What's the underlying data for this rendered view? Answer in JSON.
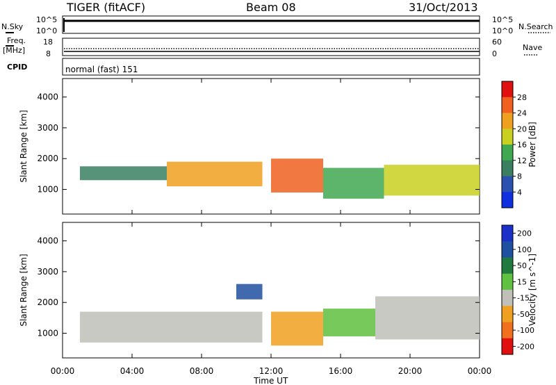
{
  "header": {
    "station": "TIGER (fitACF)",
    "beam": "Beam 08",
    "date": "31/Oct/2013"
  },
  "top_panels": {
    "nsky_label": "N.Sky",
    "nsearch_label": "N.Search",
    "noise_ticks": [
      "10^5",
      "10^0"
    ],
    "freq_label_top": "Freq.",
    "freq_label_unit": "[MHz]",
    "freq_ticks": [
      "18",
      "8"
    ],
    "nave_label": "Nave",
    "nave_ticks": [
      "60",
      "0"
    ],
    "cpid_label": "CPID",
    "cpid_text": "normal (fast) 151"
  },
  "chart_data": [
    {
      "type": "heatmap",
      "title": "",
      "xlabel": "Time UT",
      "ylabel": "Slant Range [km]",
      "x_ticks": [
        "00:00",
        "04:00",
        "08:00",
        "12:00",
        "16:00",
        "20:00",
        "00:00"
      ],
      "y_ticks": [
        "1000",
        "2000",
        "3000",
        "4000"
      ],
      "ylim": [
        200,
        4600
      ],
      "colorbar": {
        "label": "Power [dB]",
        "ticks": [
          "4",
          "8",
          "12",
          "16",
          "20",
          "24",
          "28"
        ],
        "range": [
          0,
          32
        ],
        "colors": [
          "#1030e0",
          "#2b50b0",
          "#3a8060",
          "#40a850",
          "#c8d020",
          "#f0a020",
          "#f06020",
          "#e01010"
        ]
      },
      "bands": [
        {
          "t_start": 1.0,
          "t_end": 6.0,
          "range_start": 1300,
          "range_end": 1750,
          "power": 8
        },
        {
          "t_start": 6.0,
          "t_end": 11.5,
          "range_start": 1100,
          "range_end": 1900,
          "power": 20
        },
        {
          "t_start": 12.0,
          "t_end": 15.0,
          "range_start": 900,
          "range_end": 2000,
          "power": 26
        },
        {
          "t_start": 15.0,
          "t_end": 18.5,
          "range_start": 700,
          "range_end": 1700,
          "power": 12
        },
        {
          "t_start": 18.5,
          "t_end": 24.0,
          "range_start": 800,
          "range_end": 1800,
          "power": 18
        }
      ]
    },
    {
      "type": "heatmap",
      "title": "",
      "xlabel": "Time UT",
      "ylabel": "Slant Range [km]",
      "x_ticks": [
        "00:00",
        "04:00",
        "08:00",
        "12:00",
        "16:00",
        "20:00",
        "00:00"
      ],
      "y_ticks": [
        "1000",
        "2000",
        "3000",
        "4000"
      ],
      "ylim": [
        200,
        4600
      ],
      "colorbar": {
        "label": "Velocity [m s^-1]",
        "ticks": [
          "200",
          "100",
          "50",
          "15",
          "-15",
          "-50",
          "-100",
          "-200"
        ],
        "range": [
          -250,
          250
        ],
        "colors": [
          "#1a30c8",
          "#2050a0",
          "#207a40",
          "#60c040",
          "#c0c0b8",
          "#f0a020",
          "#f07020",
          "#e01010"
        ]
      },
      "bands": [
        {
          "t_start": 1.0,
          "t_end": 11.5,
          "range_start": 700,
          "range_end": 1700,
          "velocity": 0
        },
        {
          "t_start": 10.0,
          "t_end": 11.5,
          "range_start": 2100,
          "range_end": 2600,
          "velocity": 180
        },
        {
          "t_start": 12.0,
          "t_end": 15.0,
          "range_start": 600,
          "range_end": 1700,
          "velocity": -80
        },
        {
          "t_start": 15.0,
          "t_end": 18.0,
          "range_start": 900,
          "range_end": 1800,
          "velocity": 30
        },
        {
          "t_start": 18.0,
          "t_end": 24.0,
          "range_start": 800,
          "range_end": 2200,
          "velocity": 0
        }
      ]
    }
  ]
}
